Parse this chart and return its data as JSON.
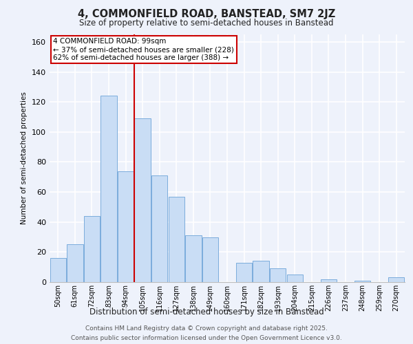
{
  "title": "4, COMMONFIELD ROAD, BANSTEAD, SM7 2JZ",
  "subtitle": "Size of property relative to semi-detached houses in Banstead",
  "xlabel": "Distribution of semi-detached houses by size in Banstead",
  "ylabel": "Number of semi-detached properties",
  "bar_labels": [
    "50sqm",
    "61sqm",
    "72sqm",
    "83sqm",
    "94sqm",
    "105sqm",
    "116sqm",
    "127sqm",
    "138sqm",
    "149sqm",
    "160sqm",
    "171sqm",
    "182sqm",
    "193sqm",
    "204sqm",
    "215sqm",
    "226sqm",
    "237sqm",
    "248sqm",
    "259sqm",
    "270sqm"
  ],
  "bar_values": [
    16,
    25,
    44,
    124,
    74,
    109,
    71,
    57,
    31,
    30,
    0,
    13,
    14,
    9,
    5,
    0,
    2,
    0,
    1,
    0,
    3
  ],
  "bar_color": "#c9ddf5",
  "bar_edge_color": "#7aacdc",
  "vline_x": 4.5,
  "vline_color": "#cc0000",
  "annotation_title": "4 COMMONFIELD ROAD: 99sqm",
  "annotation_line1": "← 37% of semi-detached houses are smaller (228)",
  "annotation_line2": "62% of semi-detached houses are larger (388) →",
  "annotation_box_color": "#ffffff",
  "annotation_box_edge": "#cc0000",
  "ylim": [
    0,
    165
  ],
  "yticks": [
    0,
    20,
    40,
    60,
    80,
    100,
    120,
    140,
    160
  ],
  "footer_line1": "Contains HM Land Registry data © Crown copyright and database right 2025.",
  "footer_line2": "Contains public sector information licensed under the Open Government Licence v3.0.",
  "bg_color": "#eef2fb",
  "plot_bg_color": "#eef2fb",
  "grid_color": "#ffffff"
}
